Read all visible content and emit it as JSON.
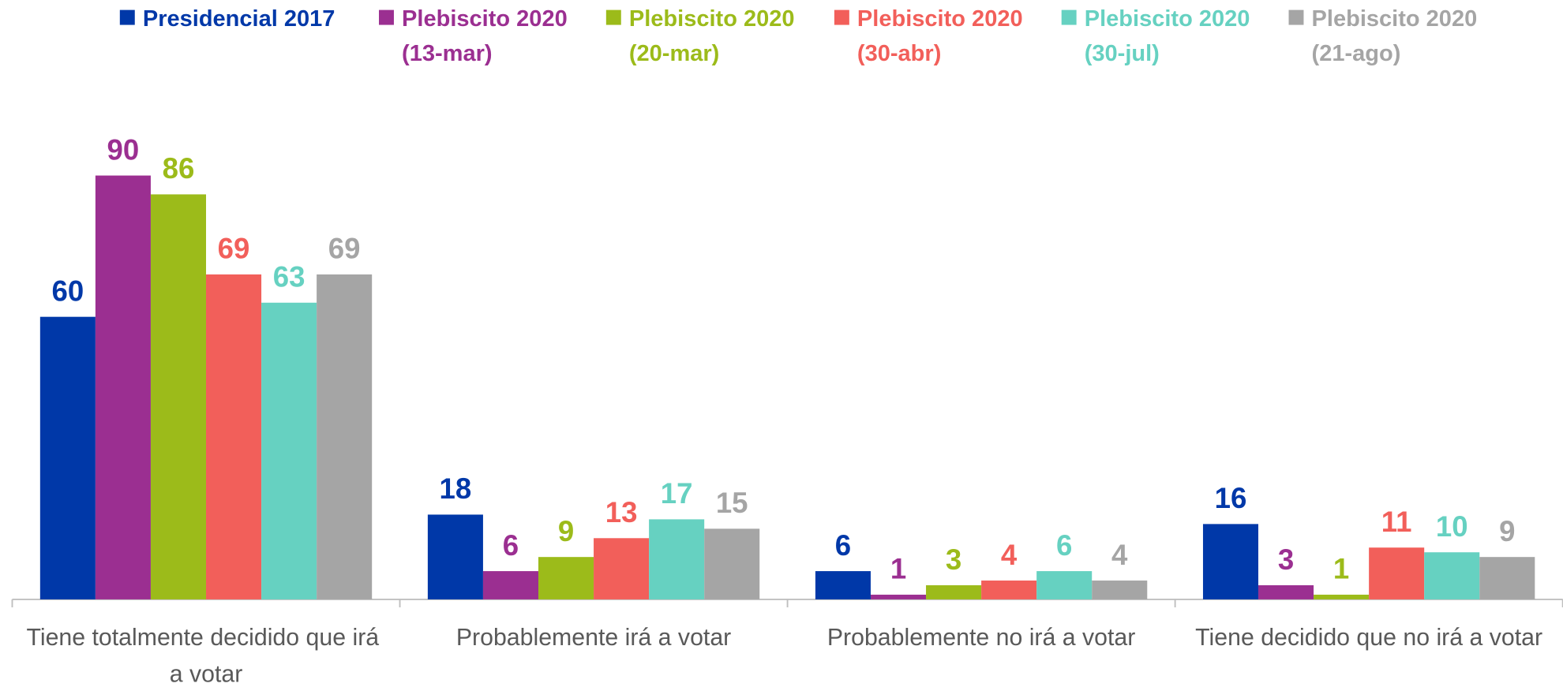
{
  "chart_data": {
    "type": "bar",
    "categories": [
      "Tiene totalmente decidido que irá a votar",
      "Probablemente irá a votar",
      "Probablemente no irá a votar",
      "Tiene decidido que no irá a votar"
    ],
    "series": [
      {
        "name": "Presidencial 2017",
        "color": "#0038a8",
        "values": [
          60,
          18,
          6,
          16
        ]
      },
      {
        "name": "Plebiscito 2020 (13-mar)",
        "color": "#9b2f91",
        "values": [
          90,
          6,
          1,
          3
        ]
      },
      {
        "name": "Plebiscito 2020 (20-mar)",
        "color": "#9cbb1a",
        "values": [
          86,
          9,
          3,
          1
        ]
      },
      {
        "name": "Plebiscito 2020 (30-abr)",
        "color": "#f25f5a",
        "values": [
          69,
          13,
          4,
          11
        ]
      },
      {
        "name": "Plebiscito 2020 (30-jul)",
        "color": "#66d1c1",
        "values": [
          63,
          17,
          6,
          10
        ]
      },
      {
        "name": "Plebiscito 2020 (21-ago)",
        "color": "#a5a5a5",
        "values": [
          69,
          15,
          4,
          9
        ]
      }
    ],
    "ylim": [
      0,
      100
    ],
    "legend": "top"
  }
}
